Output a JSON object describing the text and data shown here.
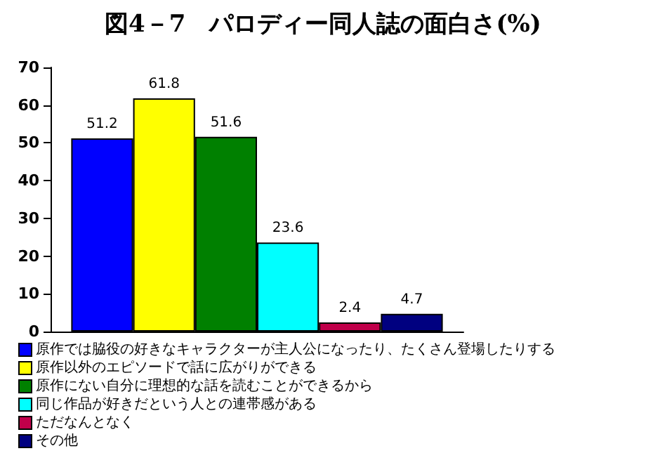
{
  "chart_data": {
    "type": "bar",
    "title": "図4－7　パロディー同人誌の面白さ(%)",
    "categories": [
      null
    ],
    "series": [
      {
        "name": "原作では脇役の好きなキャラクターが主人公になったり、たくさん登場したりする",
        "color": "#0000ff",
        "values": [
          51.2
        ]
      },
      {
        "name": "原作以外のエピソードで話に広がりができる",
        "color": "#ffff00",
        "values": [
          61.8
        ]
      },
      {
        "name": "原作にない自分に理想的な話を読むことができるから",
        "color": "#008000",
        "values": [
          51.6
        ]
      },
      {
        "name": "同じ作品が好きだという人との連帯感がある",
        "color": "#00ffff",
        "values": [
          23.6
        ]
      },
      {
        "name": "ただなんとなく",
        "color": "#c0004a",
        "values": [
          2.4
        ]
      },
      {
        "name": "その他",
        "color": "#000080",
        "values": [
          4.7
        ]
      }
    ],
    "ylim": [
      0,
      70
    ],
    "yticks": [
      0,
      10,
      20,
      30,
      40,
      50,
      60,
      70
    ],
    "grid": false,
    "legend": "bottom",
    "data_labels": true
  }
}
